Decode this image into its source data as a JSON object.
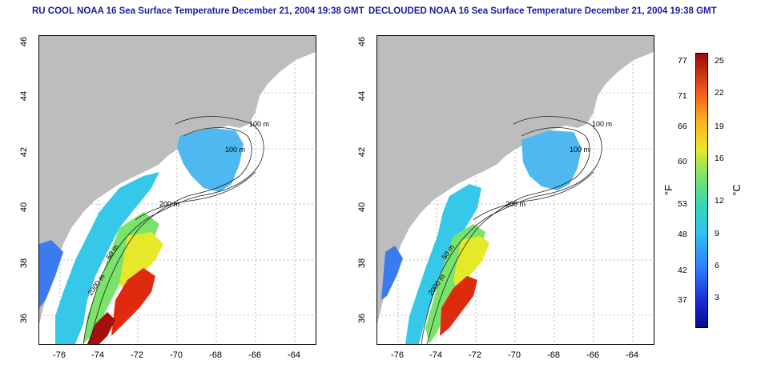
{
  "titles": {
    "left": "RU COOL NOAA 16 Sea Surface Temperature December 21, 2004 19:38 GMT",
    "right": "DECLOUDED NOAA 16 Sea Surface Temperature December 21, 2004 19:38 GMT"
  },
  "y_ticks": [
    "46",
    "44",
    "42",
    "40",
    "38",
    "36"
  ],
  "x_ticks": [
    "-76",
    "-74",
    "-72",
    "-70",
    "-68",
    "-66",
    "-64"
  ],
  "contours": {
    "c100": "100 m",
    "c50": "50 m",
    "c200": "200 m",
    "c2000": "2000 m"
  },
  "colorbar": {
    "f_ticks": [
      "77",
      "71",
      "66",
      "60",
      "53",
      "48",
      "42",
      "37"
    ],
    "c_ticks": [
      "25",
      "22",
      "19",
      "16",
      "12",
      "9",
      "6",
      "3"
    ],
    "f_unit": "°F",
    "c_unit": "°C"
  },
  "colors": {
    "land": "#bdbdbd",
    "warm": "#e02a10",
    "hot": "#a50f0f",
    "mid": "#35c8e8",
    "cool": "#3a7cf0"
  }
}
